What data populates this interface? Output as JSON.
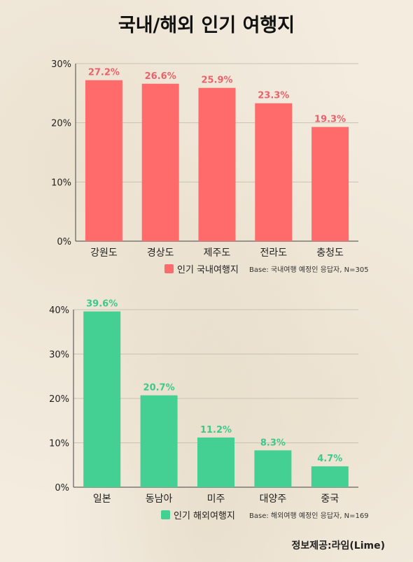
{
  "title": "국내/해외 인기 여행지",
  "footer": "정보제공:라임(Lime)",
  "chart_data": [
    {
      "type": "bar",
      "categories": [
        "강원도",
        "경상도",
        "제주도",
        "전라도",
        "충청도"
      ],
      "values": [
        27.2,
        26.6,
        25.9,
        23.3,
        19.3
      ],
      "value_labels": [
        "27.2%",
        "26.6%",
        "25.9%",
        "23.3%",
        "19.3%"
      ],
      "ylim": [
        0,
        30
      ],
      "yticks": [
        0,
        10,
        20,
        30
      ],
      "ytick_labels": [
        "0%",
        "10%",
        "20%",
        "30%"
      ],
      "color": "#ff6b6b",
      "label_color": "#e8636b",
      "legend": "인기 국내여행지",
      "base": "Base: 국내여행 예정인 응답자, N=305",
      "grid": true
    },
    {
      "type": "bar",
      "categories": [
        "일본",
        "동남아",
        "미주",
        "대양주",
        "중국"
      ],
      "values": [
        39.6,
        20.7,
        11.2,
        8.3,
        4.7
      ],
      "value_labels": [
        "39.6%",
        "20.7%",
        "11.2%",
        "8.3%",
        "4.7%"
      ],
      "ylim": [
        0,
        40
      ],
      "yticks": [
        0,
        10,
        20,
        30,
        40
      ],
      "ytick_labels": [
        "0%",
        "10%",
        "20%",
        "30%",
        "40%"
      ],
      "color": "#43d092",
      "label_color": "#3ec98c",
      "legend": "인기 해외여행지",
      "base": "Base: 해외여행 예정인 응답자, N=169",
      "grid": true
    }
  ]
}
